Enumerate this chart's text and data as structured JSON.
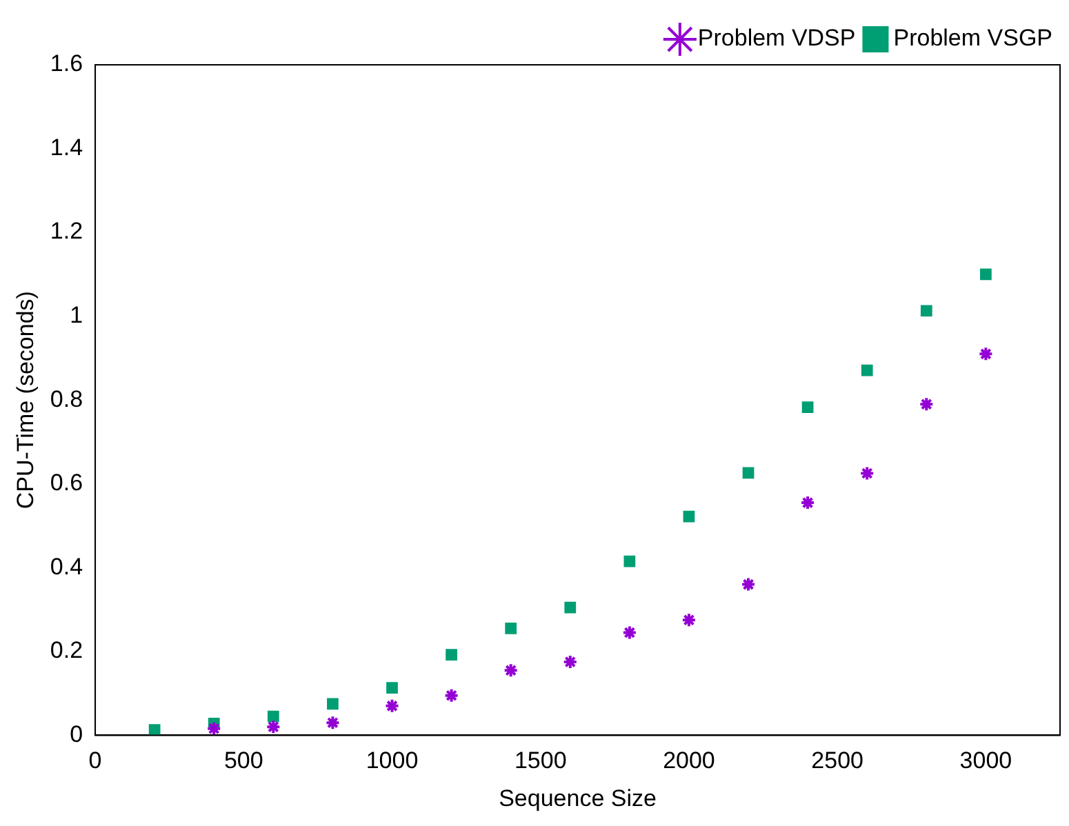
{
  "chart_data": {
    "type": "scatter",
    "xlabel": "Sequence Size",
    "ylabel": "CPU-Time (seconds)",
    "x": [
      200,
      400,
      600,
      800,
      1000,
      1200,
      1400,
      1600,
      1800,
      2000,
      2200,
      2400,
      2600,
      2800,
      3000
    ],
    "series": [
      {
        "name": "Problem VDSP",
        "color": "#9400d3",
        "marker": "cross",
        "values": [
          null,
          0.016,
          0.02,
          0.03,
          0.07,
          0.095,
          0.155,
          0.175,
          0.245,
          0.275,
          0.36,
          0.555,
          0.625,
          0.79,
          0.91
        ]
      },
      {
        "name": "Problem VSGP",
        "color": "#009e73",
        "marker": "square",
        "values": [
          0.013,
          0.028,
          0.045,
          0.075,
          0.113,
          0.192,
          0.255,
          0.305,
          0.415,
          0.522,
          0.626,
          0.783,
          0.871,
          1.013,
          1.1
        ]
      }
    ],
    "xlim": [
      0,
      3250
    ],
    "xticks": [
      0,
      500,
      1000,
      1500,
      2000,
      2500,
      3000
    ],
    "ylim": [
      0,
      1.6
    ],
    "yticks": [
      0,
      0.2,
      0.4,
      0.6,
      0.8,
      1,
      1.2,
      1.4,
      1.6
    ],
    "grid": false,
    "legend": "top right"
  }
}
